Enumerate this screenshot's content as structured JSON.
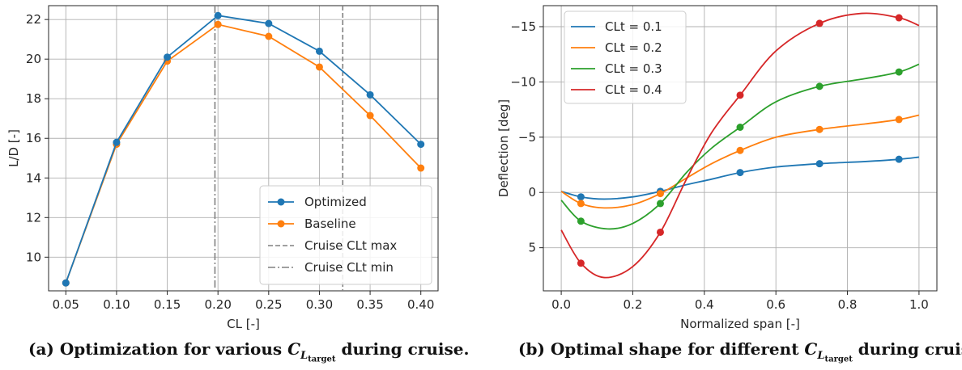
{
  "colors": {
    "optimized": "#1f77b4",
    "baseline": "#ff7f0e",
    "clt_0_1": "#1f77b4",
    "clt_0_2": "#ff7f0e",
    "clt_0_3": "#2ca02c",
    "clt_0_4": "#d62728",
    "grid": "#b0b0b0",
    "vline": "#808080"
  },
  "captions": {
    "a_prefix": "(a) Optimization for various ",
    "a_var": "C",
    "a_sub": "L",
    "a_subsub": "target",
    "a_suffix": " during cruise.",
    "b_prefix": "(b) Optimal shape for different ",
    "b_var": "C",
    "b_sub": "L",
    "b_subsub": "target",
    "b_suffix": " during cruise."
  },
  "chart_data": [
    {
      "type": "line",
      "xlabel": "CL [-]",
      "ylabel": "L/D [-]",
      "xlim": [
        0.033,
        0.417
      ],
      "ylim": [
        8.3,
        22.7
      ],
      "xticks": [
        "0.05",
        "0.10",
        "0.15",
        "0.20",
        "0.25",
        "0.30",
        "0.35",
        "0.40"
      ],
      "xtick_values": [
        0.05,
        0.1,
        0.15,
        0.2,
        0.25,
        0.3,
        0.35,
        0.4
      ],
      "yticks": [
        "10",
        "12",
        "14",
        "16",
        "18",
        "20",
        "22"
      ],
      "ytick_values": [
        10,
        12,
        14,
        16,
        18,
        20,
        22
      ],
      "grid": true,
      "legend_position": "bottom-right",
      "x": [
        0.05,
        0.1,
        0.15,
        0.2,
        0.25,
        0.3,
        0.35,
        0.4
      ],
      "series": [
        {
          "name": "Optimized",
          "color": "#1f77b4",
          "values": [
            8.7,
            15.8,
            20.1,
            22.2,
            21.8,
            20.4,
            18.2,
            15.7
          ]
        },
        {
          "name": "Baseline",
          "color": "#ff7f0e",
          "values": [
            8.7,
            15.7,
            19.9,
            21.75,
            21.15,
            19.6,
            17.15,
            14.5
          ]
        }
      ],
      "vlines": [
        {
          "name": "Cruise CLt max",
          "x": 0.323,
          "style": "dashed",
          "color": "#808080"
        },
        {
          "name": "Cruise CLt min",
          "x": 0.197,
          "style": "dashdot",
          "color": "#808080"
        }
      ]
    },
    {
      "type": "line",
      "xlabel": "Normalized span [-]",
      "ylabel": "Deflection [deg]",
      "xlim": [
        -0.05,
        1.05
      ],
      "ylim": [
        8.9,
        -16.9
      ],
      "y_inverted": true,
      "xticks": [
        "0.0",
        "0.2",
        "0.4",
        "0.6",
        "0.8",
        "1.0"
      ],
      "xtick_values": [
        0.0,
        0.2,
        0.4,
        0.6,
        0.8,
        1.0
      ],
      "yticks": [
        "5",
        "0",
        "−5",
        "−10",
        "−15"
      ],
      "ytick_values": [
        5,
        0,
        -5,
        -10,
        -15
      ],
      "grid": true,
      "legend_position": "top-left",
      "series": [
        {
          "name": "CLt = 0.1",
          "color": "#1f77b4",
          "markers": {
            "x": [
              0.055,
              0.277,
              0.5,
              0.722,
              0.944
            ],
            "y": [
              0.4,
              -0.1,
              -1.8,
              -2.6,
              -3.0
            ]
          },
          "curve": {
            "x": [
              0,
              0.055,
              0.12,
              0.2,
              0.277,
              0.35,
              0.42,
              0.5,
              0.6,
              0.722,
              0.85,
              0.944,
              1.0
            ],
            "y": [
              -0.1,
              0.4,
              0.6,
              0.4,
              -0.1,
              -0.7,
              -1.2,
              -1.8,
              -2.3,
              -2.6,
              -2.8,
              -3.0,
              -3.2
            ]
          }
        },
        {
          "name": "CLt = 0.2",
          "color": "#ff7f0e",
          "markers": {
            "x": [
              0.055,
              0.277,
              0.5,
              0.722,
              0.944
            ],
            "y": [
              1.0,
              0.1,
              -3.8,
              -5.7,
              -6.6
            ]
          },
          "curve": {
            "x": [
              0,
              0.055,
              0.12,
              0.2,
              0.277,
              0.35,
              0.42,
              0.5,
              0.6,
              0.722,
              0.85,
              0.944,
              1.0
            ],
            "y": [
              -0.1,
              1.0,
              1.4,
              1.1,
              0.1,
              -1.3,
              -2.6,
              -3.8,
              -5.0,
              -5.7,
              -6.2,
              -6.6,
              -7.0
            ]
          }
        },
        {
          "name": "CLt = 0.3",
          "color": "#2ca02c",
          "markers": {
            "x": [
              0.055,
              0.277,
              0.5,
              0.722,
              0.944
            ],
            "y": [
              2.6,
              1.0,
              -5.9,
              -9.6,
              -10.9
            ]
          },
          "curve": {
            "x": [
              0,
              0.055,
              0.13,
              0.2,
              0.277,
              0.35,
              0.42,
              0.5,
              0.6,
              0.722,
              0.85,
              0.944,
              1.0
            ],
            "y": [
              0.7,
              2.6,
              3.3,
              2.8,
              1.0,
              -1.8,
              -4.0,
              -5.9,
              -8.2,
              -9.6,
              -10.3,
              -10.9,
              -11.6
            ]
          }
        },
        {
          "name": "CLt = 0.4",
          "color": "#d62728",
          "markers": {
            "x": [
              0.055,
              0.277,
              0.5,
              0.722,
              0.944
            ],
            "y": [
              6.4,
              3.6,
              -8.8,
              -15.3,
              -15.8
            ]
          },
          "curve": {
            "x": [
              0,
              0.055,
              0.12,
              0.2,
              0.277,
              0.35,
              0.42,
              0.5,
              0.6,
              0.722,
              0.84,
              0.944,
              1.0
            ],
            "y": [
              3.4,
              6.4,
              7.7,
              6.7,
              3.6,
              -1.2,
              -5.4,
              -8.8,
              -12.8,
              -15.3,
              -16.2,
              -15.8,
              -15.1
            ]
          }
        }
      ]
    }
  ]
}
